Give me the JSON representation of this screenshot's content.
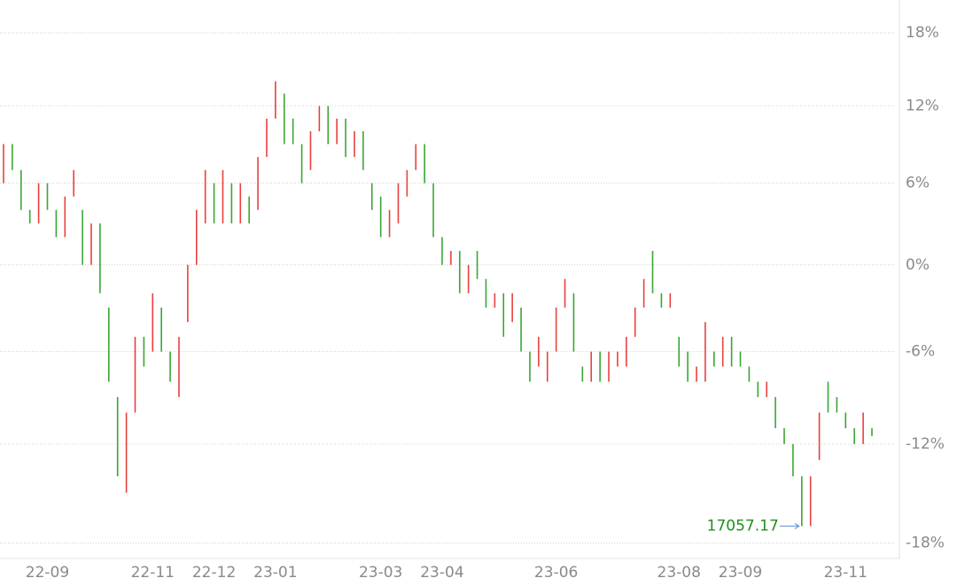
{
  "chart_data": {
    "type": "range-bar",
    "categories": [
      null,
      null,
      null,
      null,
      null,
      "22-09",
      null,
      null,
      null,
      null,
      null,
      null,
      null,
      null,
      null,
      null,
      null,
      "22-11",
      null,
      null,
      null,
      null,
      null,
      null,
      "22-12",
      null,
      null,
      null,
      null,
      null,
      null,
      "23-01",
      null,
      null,
      null,
      null,
      null,
      null,
      null,
      null,
      null,
      null,
      null,
      "23-03",
      null,
      null,
      null,
      null,
      null,
      null,
      "23-04",
      null,
      null,
      null,
      null,
      null,
      null,
      null,
      null,
      null,
      null,
      null,
      null,
      "23-06",
      null,
      null,
      null,
      null,
      null,
      null,
      null,
      null,
      null,
      null,
      null,
      null,
      null,
      "23-08",
      null,
      null,
      null,
      null,
      null,
      null,
      "23-09",
      null,
      null,
      null,
      null,
      null,
      null,
      null,
      null,
      null,
      null,
      null,
      "23-11",
      null,
      null,
      null
    ],
    "open": [
      6,
      9,
      7,
      4,
      3,
      6,
      4,
      2,
      5,
      4,
      0,
      3,
      -3,
      -9,
      -15,
      -10,
      -5,
      -6,
      -3,
      -6,
      -9,
      -4,
      0,
      3,
      6,
      3,
      6,
      3,
      5,
      4,
      8,
      11,
      13,
      11,
      9,
      7,
      10,
      12,
      9,
      11,
      8,
      10,
      6,
      5,
      2,
      3,
      5,
      7,
      9,
      6,
      2,
      0,
      1,
      -2,
      1,
      -1,
      -3,
      -2,
      -4,
      -3,
      -6,
      -7,
      -8,
      -6,
      -3,
      -2,
      -7,
      -8,
      -6,
      -8,
      -7,
      -7,
      -5,
      -3,
      1,
      -2,
      -3,
      -5,
      -6,
      -8,
      -8,
      -6,
      -7,
      -5,
      -6,
      -7,
      -8,
      -9,
      -9,
      -11,
      -12,
      -14,
      -17,
      -13,
      -8,
      -9,
      -10,
      -11,
      -12,
      -11
    ],
    "close": [
      9,
      7,
      4,
      3,
      6,
      4,
      2,
      5,
      7,
      0,
      3,
      -2,
      -8,
      -14,
      -10,
      -5,
      -7,
      -2,
      -6,
      -8,
      -5,
      0,
      4,
      7,
      3,
      7,
      3,
      6,
      3,
      8,
      11,
      14,
      9,
      9,
      6,
      10,
      12,
      9,
      11,
      8,
      10,
      7,
      4,
      2,
      4,
      6,
      7,
      9,
      6,
      2,
      0,
      1,
      -2,
      0,
      -1,
      -3,
      -2,
      -5,
      -2,
      -6,
      -8,
      -5,
      -6,
      -3,
      -1,
      -6,
      -8,
      -6,
      -8,
      -6,
      -6,
      -5,
      -3,
      -1,
      -2,
      -3,
      -2,
      -7,
      -8,
      -7,
      -4,
      -7,
      -5,
      -7,
      -7,
      -8,
      -9,
      -8,
      -11,
      -12,
      -14,
      -17,
      -14,
      -10,
      -10,
      -10,
      -11,
      -12,
      -10,
      -11.5
    ],
    "up_color": "#e8413e",
    "down_color": "#3aa635",
    "log": true,
    "grid": true,
    "ylim": [
      -18.9,
      20.8
    ],
    "yticks": [
      {
        "value": 18,
        "label": "18%"
      },
      {
        "value": 12,
        "label": "12%"
      },
      {
        "value": 6,
        "label": "6%"
      },
      {
        "value": 0,
        "label": "0%"
      },
      {
        "value": -6,
        "label": "-6%"
      },
      {
        "value": -12,
        "label": "-12%"
      },
      {
        "value": -18,
        "label": "-18%"
      }
    ],
    "annotation": {
      "text": "17057.17",
      "index": 91,
      "color": "#1f8f1f"
    }
  }
}
